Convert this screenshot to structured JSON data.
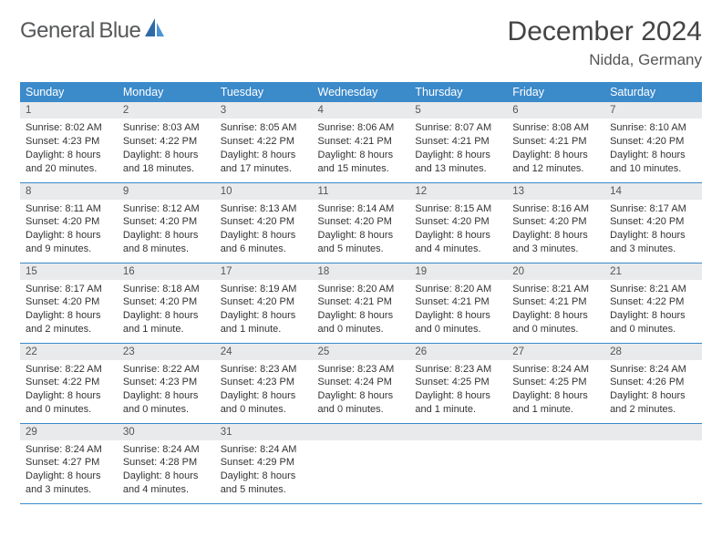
{
  "brand": {
    "name1": "General",
    "name2": "Blue"
  },
  "title": "December 2024",
  "location": "Nidda, Germany",
  "weekday_headers": [
    "Sunday",
    "Monday",
    "Tuesday",
    "Wednesday",
    "Thursday",
    "Friday",
    "Saturday"
  ],
  "colors": {
    "header_bg": "#3b8aca",
    "header_text": "#ffffff",
    "daynum_bg": "#e9eaeb",
    "border": "#3b8aca",
    "logo_gray": "#57585a",
    "logo_blue": "#3a7ab8"
  },
  "typography": {
    "title_fontsize": 30,
    "location_fontsize": 17,
    "header_fontsize": 12.5,
    "cell_fontsize": 11
  },
  "weeks": [
    [
      {
        "n": "1",
        "sunrise": "Sunrise: 8:02 AM",
        "sunset": "Sunset: 4:23 PM",
        "day1": "Daylight: 8 hours",
        "day2": "and 20 minutes."
      },
      {
        "n": "2",
        "sunrise": "Sunrise: 8:03 AM",
        "sunset": "Sunset: 4:22 PM",
        "day1": "Daylight: 8 hours",
        "day2": "and 18 minutes."
      },
      {
        "n": "3",
        "sunrise": "Sunrise: 8:05 AM",
        "sunset": "Sunset: 4:22 PM",
        "day1": "Daylight: 8 hours",
        "day2": "and 17 minutes."
      },
      {
        "n": "4",
        "sunrise": "Sunrise: 8:06 AM",
        "sunset": "Sunset: 4:21 PM",
        "day1": "Daylight: 8 hours",
        "day2": "and 15 minutes."
      },
      {
        "n": "5",
        "sunrise": "Sunrise: 8:07 AM",
        "sunset": "Sunset: 4:21 PM",
        "day1": "Daylight: 8 hours",
        "day2": "and 13 minutes."
      },
      {
        "n": "6",
        "sunrise": "Sunrise: 8:08 AM",
        "sunset": "Sunset: 4:21 PM",
        "day1": "Daylight: 8 hours",
        "day2": "and 12 minutes."
      },
      {
        "n": "7",
        "sunrise": "Sunrise: 8:10 AM",
        "sunset": "Sunset: 4:20 PM",
        "day1": "Daylight: 8 hours",
        "day2": "and 10 minutes."
      }
    ],
    [
      {
        "n": "8",
        "sunrise": "Sunrise: 8:11 AM",
        "sunset": "Sunset: 4:20 PM",
        "day1": "Daylight: 8 hours",
        "day2": "and 9 minutes."
      },
      {
        "n": "9",
        "sunrise": "Sunrise: 8:12 AM",
        "sunset": "Sunset: 4:20 PM",
        "day1": "Daylight: 8 hours",
        "day2": "and 8 minutes."
      },
      {
        "n": "10",
        "sunrise": "Sunrise: 8:13 AM",
        "sunset": "Sunset: 4:20 PM",
        "day1": "Daylight: 8 hours",
        "day2": "and 6 minutes."
      },
      {
        "n": "11",
        "sunrise": "Sunrise: 8:14 AM",
        "sunset": "Sunset: 4:20 PM",
        "day1": "Daylight: 8 hours",
        "day2": "and 5 minutes."
      },
      {
        "n": "12",
        "sunrise": "Sunrise: 8:15 AM",
        "sunset": "Sunset: 4:20 PM",
        "day1": "Daylight: 8 hours",
        "day2": "and 4 minutes."
      },
      {
        "n": "13",
        "sunrise": "Sunrise: 8:16 AM",
        "sunset": "Sunset: 4:20 PM",
        "day1": "Daylight: 8 hours",
        "day2": "and 3 minutes."
      },
      {
        "n": "14",
        "sunrise": "Sunrise: 8:17 AM",
        "sunset": "Sunset: 4:20 PM",
        "day1": "Daylight: 8 hours",
        "day2": "and 3 minutes."
      }
    ],
    [
      {
        "n": "15",
        "sunrise": "Sunrise: 8:17 AM",
        "sunset": "Sunset: 4:20 PM",
        "day1": "Daylight: 8 hours",
        "day2": "and 2 minutes."
      },
      {
        "n": "16",
        "sunrise": "Sunrise: 8:18 AM",
        "sunset": "Sunset: 4:20 PM",
        "day1": "Daylight: 8 hours",
        "day2": "and 1 minute."
      },
      {
        "n": "17",
        "sunrise": "Sunrise: 8:19 AM",
        "sunset": "Sunset: 4:20 PM",
        "day1": "Daylight: 8 hours",
        "day2": "and 1 minute."
      },
      {
        "n": "18",
        "sunrise": "Sunrise: 8:20 AM",
        "sunset": "Sunset: 4:21 PM",
        "day1": "Daylight: 8 hours",
        "day2": "and 0 minutes."
      },
      {
        "n": "19",
        "sunrise": "Sunrise: 8:20 AM",
        "sunset": "Sunset: 4:21 PM",
        "day1": "Daylight: 8 hours",
        "day2": "and 0 minutes."
      },
      {
        "n": "20",
        "sunrise": "Sunrise: 8:21 AM",
        "sunset": "Sunset: 4:21 PM",
        "day1": "Daylight: 8 hours",
        "day2": "and 0 minutes."
      },
      {
        "n": "21",
        "sunrise": "Sunrise: 8:21 AM",
        "sunset": "Sunset: 4:22 PM",
        "day1": "Daylight: 8 hours",
        "day2": "and 0 minutes."
      }
    ],
    [
      {
        "n": "22",
        "sunrise": "Sunrise: 8:22 AM",
        "sunset": "Sunset: 4:22 PM",
        "day1": "Daylight: 8 hours",
        "day2": "and 0 minutes."
      },
      {
        "n": "23",
        "sunrise": "Sunrise: 8:22 AM",
        "sunset": "Sunset: 4:23 PM",
        "day1": "Daylight: 8 hours",
        "day2": "and 0 minutes."
      },
      {
        "n": "24",
        "sunrise": "Sunrise: 8:23 AM",
        "sunset": "Sunset: 4:23 PM",
        "day1": "Daylight: 8 hours",
        "day2": "and 0 minutes."
      },
      {
        "n": "25",
        "sunrise": "Sunrise: 8:23 AM",
        "sunset": "Sunset: 4:24 PM",
        "day1": "Daylight: 8 hours",
        "day2": "and 0 minutes."
      },
      {
        "n": "26",
        "sunrise": "Sunrise: 8:23 AM",
        "sunset": "Sunset: 4:25 PM",
        "day1": "Daylight: 8 hours",
        "day2": "and 1 minute."
      },
      {
        "n": "27",
        "sunrise": "Sunrise: 8:24 AM",
        "sunset": "Sunset: 4:25 PM",
        "day1": "Daylight: 8 hours",
        "day2": "and 1 minute."
      },
      {
        "n": "28",
        "sunrise": "Sunrise: 8:24 AM",
        "sunset": "Sunset: 4:26 PM",
        "day1": "Daylight: 8 hours",
        "day2": "and 2 minutes."
      }
    ],
    [
      {
        "n": "29",
        "sunrise": "Sunrise: 8:24 AM",
        "sunset": "Sunset: 4:27 PM",
        "day1": "Daylight: 8 hours",
        "day2": "and 3 minutes."
      },
      {
        "n": "30",
        "sunrise": "Sunrise: 8:24 AM",
        "sunset": "Sunset: 4:28 PM",
        "day1": "Daylight: 8 hours",
        "day2": "and 4 minutes."
      },
      {
        "n": "31",
        "sunrise": "Sunrise: 8:24 AM",
        "sunset": "Sunset: 4:29 PM",
        "day1": "Daylight: 8 hours",
        "day2": "and 5 minutes."
      },
      {
        "n": "",
        "sunrise": "",
        "sunset": "",
        "day1": "",
        "day2": "",
        "empty": true
      },
      {
        "n": "",
        "sunrise": "",
        "sunset": "",
        "day1": "",
        "day2": "",
        "empty": true
      },
      {
        "n": "",
        "sunrise": "",
        "sunset": "",
        "day1": "",
        "day2": "",
        "empty": true
      },
      {
        "n": "",
        "sunrise": "",
        "sunset": "",
        "day1": "",
        "day2": "",
        "empty": true
      }
    ]
  ]
}
